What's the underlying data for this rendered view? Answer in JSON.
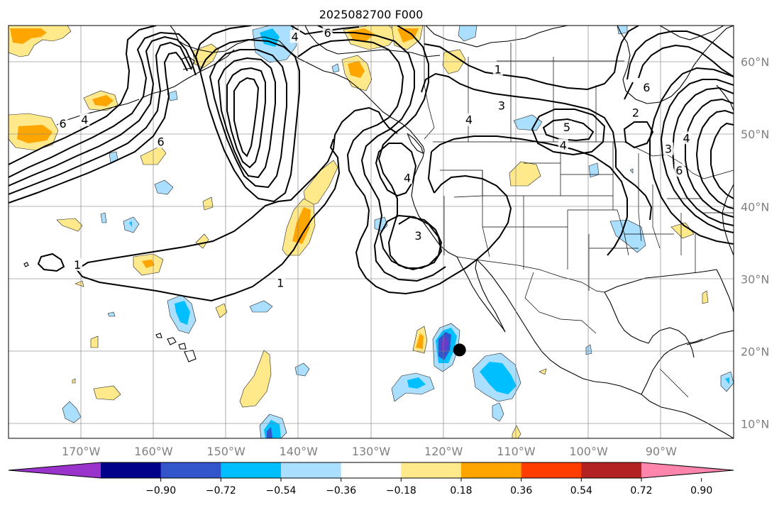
{
  "title": "2025082700 F000",
  "map": {
    "extent": {
      "lon": [
        -180,
        -80
      ],
      "lat": [
        8,
        65
      ]
    },
    "latitudes": [
      {
        "value": 10,
        "label": "10°N"
      },
      {
        "value": 20,
        "label": "20°N"
      },
      {
        "value": 30,
        "label": "30°N"
      },
      {
        "value": 40,
        "label": "40°N"
      },
      {
        "value": 50,
        "label": "50°N"
      },
      {
        "value": 60,
        "label": "60°N"
      }
    ],
    "longitudes": [
      {
        "value": -170,
        "label": "170°W"
      },
      {
        "value": -160,
        "label": "160°W"
      },
      {
        "value": -150,
        "label": "150°W"
      },
      {
        "value": -140,
        "label": "140°W"
      },
      {
        "value": -130,
        "label": "130°W"
      },
      {
        "value": -120,
        "label": "120°W"
      },
      {
        "value": -110,
        "label": "110°W"
      },
      {
        "value": -100,
        "label": "100°W"
      },
      {
        "value": -90,
        "label": "90°W"
      }
    ],
    "marker": {
      "lon": -117.8,
      "lat": 20.2,
      "name": "storm-position"
    },
    "contour_labels": [
      {
        "text": "1",
        "lon": -170.5,
        "lat": 32.0
      },
      {
        "text": "1",
        "lon": -142.5,
        "lat": 29.5
      },
      {
        "text": "1",
        "lon": -112.5,
        "lat": 59.0
      },
      {
        "text": "3",
        "lon": -112.0,
        "lat": 54.0
      },
      {
        "text": "3",
        "lon": -123.5,
        "lat": 36.0
      },
      {
        "text": "4",
        "lon": -125.0,
        "lat": 44.0
      },
      {
        "text": "4",
        "lon": -140.5,
        "lat": 63.5
      },
      {
        "text": "5",
        "lon": -103.0,
        "lat": 51.0
      },
      {
        "text": "4",
        "lon": -103.5,
        "lat": 48.5
      },
      {
        "text": "6",
        "lon": -136.0,
        "lat": 64.0
      },
      {
        "text": "6",
        "lon": -172.5,
        "lat": 51.5
      },
      {
        "text": "4",
        "lon": -169.5,
        "lat": 52.0
      },
      {
        "text": "6",
        "lon": -159.0,
        "lat": 49.0
      },
      {
        "text": "6",
        "lon": -92.0,
        "lat": 56.5
      },
      {
        "text": "2",
        "lon": -93.5,
        "lat": 53.0
      },
      {
        "text": "4",
        "lon": -86.5,
        "lat": 49.5
      },
      {
        "text": "3",
        "lon": -89.0,
        "lat": 48.0
      },
      {
        "text": "6",
        "lon": -87.5,
        "lat": 45.0
      },
      {
        "text": "4",
        "lon": -116.5,
        "lat": 52.0
      }
    ]
  },
  "colorbar": {
    "levels": [
      -0.9,
      -0.72,
      -0.54,
      -0.36,
      -0.18,
      0.18,
      0.36,
      0.54,
      0.72,
      0.9
    ],
    "tick_labels": [
      "−0.90",
      "−0.72",
      "−0.54",
      "−0.36",
      "−0.18",
      "0.18",
      "0.36",
      "0.54",
      "0.72",
      "0.90"
    ],
    "colors": [
      "#9a33cc",
      "#00008b",
      "#3355cc",
      "#00bfff",
      "#aadfff",
      "#ffffff",
      "#ffe98a",
      "#ffa500",
      "#ff3d00",
      "#b22222",
      "#ff85ad"
    ],
    "extend": "both"
  },
  "fills": {
    "palette": {
      "neg1": "#aadfff",
      "neg2": "#00bfff",
      "neg3": "#3355cc",
      "neg4": "#6a3acc",
      "pos1": "#ffe98a",
      "pos2": "#ffa500"
    }
  }
}
